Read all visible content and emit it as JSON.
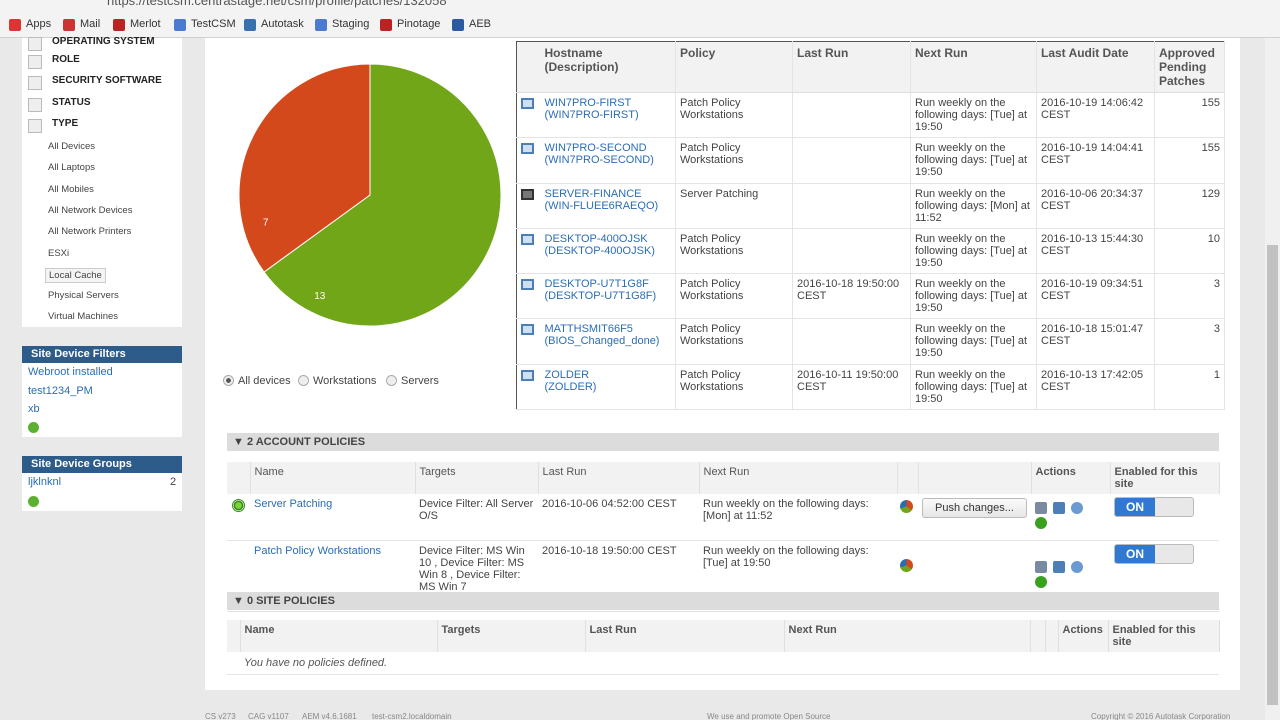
{
  "browser": {
    "url": "https://testcsm.centrastage.net/csm/profile/patches/132058",
    "bookmarks": [
      "Apps",
      "Mail",
      "Merlot",
      "TestCSM",
      "Autotask",
      "Staging",
      "Pinotage",
      "AEB"
    ]
  },
  "sidebar": {
    "filters": [
      "OPERATING SYSTEM",
      "ROLE",
      "SECURITY SOFTWARE",
      "STATUS",
      "TYPE"
    ],
    "type_items": [
      "All Devices",
      "All Laptops",
      "All Mobiles",
      "All Network Devices",
      "All Network Printers",
      "ESXi",
      "Local Cache",
      "Physical Servers",
      "Virtual Machines"
    ],
    "site_device_filters": {
      "title": "Site Device Filters",
      "items": [
        "Webroot installed",
        "test1234_PM",
        "xb"
      ]
    },
    "site_device_groups": {
      "title": "Site Device Groups",
      "items": [
        {
          "name": "ljklnknl",
          "count": "2"
        }
      ]
    }
  },
  "pie": {
    "values": [
      7,
      13
    ],
    "colors": [
      "#d4491c",
      "#71a618"
    ]
  },
  "pie_filter": [
    "All devices",
    "Workstations",
    "Servers"
  ],
  "devices": {
    "headers": [
      "Hostname\n(Description)",
      "Policy",
      "Last Run",
      "Next Run",
      "Last Audit Date",
      "Approved Pending Patches"
    ],
    "rows": [
      {
        "hostname": "WIN7PRO-FIRST",
        "description": "(WIN7PRO-FIRST)",
        "policy": "Patch Policy Workstations",
        "last_run": null,
        "next_run": "Run weekly on the following days: [Tue] at 19:50",
        "last_audit": "2016-10-19 14:06:42 CEST",
        "pending": "155"
      },
      {
        "hostname": "WIN7PRO-SECOND",
        "description": "(WIN7PRO-SECOND)",
        "policy": "Patch Policy Workstations",
        "last_run": null,
        "next_run": "Run weekly on the following days: [Tue] at 19:50",
        "last_audit": "2016-10-19 14:04:41 CEST",
        "pending": "155"
      },
      {
        "hostname": "SERVER-FINANCE",
        "description": "(WIN-FLUEE6RAEQO)",
        "policy": "Server Patching",
        "last_run": null,
        "next_run": "Run weekly on the following days: [Mon] at 11:52",
        "last_audit": "2016-10-06 20:34:37 CEST",
        "pending": "129"
      },
      {
        "hostname": "DESKTOP-400OJSK",
        "description": "(DESKTOP-400OJSK)",
        "policy": "Patch Policy Workstations",
        "last_run": null,
        "next_run": "Run weekly on the following days: [Tue] at 19:50",
        "last_audit": "2016-10-13 15:44:30 CEST",
        "pending": "10"
      },
      {
        "hostname": "DESKTOP-U7T1G8F",
        "description": "(DESKTOP-U7T1G8F)",
        "policy": "Patch Policy Workstations",
        "last_run": "2016-10-18 19:50:00 CEST",
        "next_run": "Run weekly on the following days: [Tue] at 19:50",
        "last_audit": "2016-10-19 09:34:51 CEST",
        "pending": "3"
      },
      {
        "hostname": "MATTHSMIT66F5",
        "description": "(BIOS_Changed_done)",
        "policy": "Patch Policy Workstations",
        "last_run": null,
        "next_run": "Run weekly on the following days: [Tue] at 19:50",
        "last_audit": "2016-10-18 15:01:47 CEST",
        "pending": "3"
      },
      {
        "hostname": "ZOLDER",
        "description": "(ZOLDER)",
        "policy": "Patch Policy Workstations",
        "last_run": "2016-10-11 19:50:00 CEST",
        "next_run": "Run weekly on the following days: [Tue] at 19:50",
        "last_audit": "2016-10-13 17:42:05 CEST",
        "pending": "1"
      }
    ]
  },
  "account_policies": {
    "title": "▼ 2 ACCOUNT POLICIES",
    "headers": [
      "Name",
      "Targets",
      "Last Run",
      "Next Run",
      "Actions",
      "Enabled for this site"
    ],
    "rows": [
      {
        "name": "Server Patching",
        "targets": "Device Filter: All Server O/S",
        "last_run": "2016-10-06 04:52:00 CEST",
        "next_run": "Run weekly on the following days: [Mon] at 11:52",
        "button": "Push changes...",
        "enabled": "ON"
      },
      {
        "name": "Patch Policy Workstations",
        "targets": "Device Filter: MS Win 10 , Device Filter: MS Win 8 , Device Filter: MS Win 7",
        "last_run": "2016-10-18 19:50:00 CEST",
        "next_run": "Run weekly on the following days: [Tue] at 19:50",
        "enabled": "ON"
      }
    ]
  },
  "site_policies": {
    "title": "▼ 0 SITE POLICIES",
    "headers": [
      "Name",
      "Targets",
      "Last Run",
      "Next Run",
      "Actions",
      "Enabled for this site"
    ],
    "empty": "You have no policies defined."
  },
  "footer": [
    "CS v273",
    "CAG v1107",
    "AEM v4.6.1681",
    "test-csm2.localdomain",
    "We use and promote Open Source",
    "Copyright © 2016 Autotask Corporation"
  ]
}
